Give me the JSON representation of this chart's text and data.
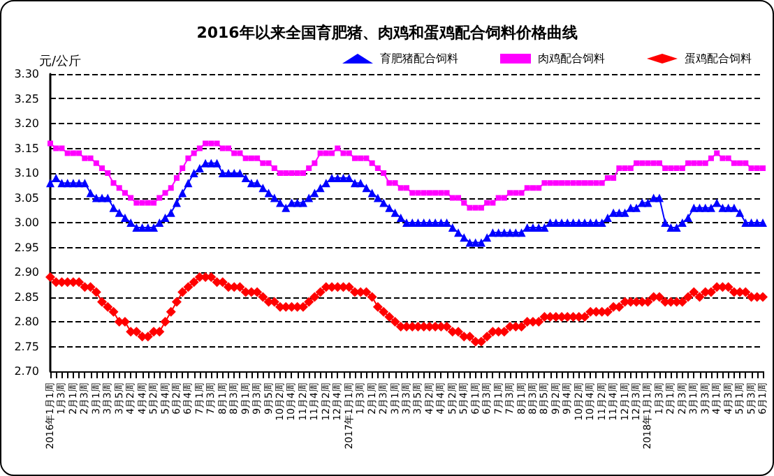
{
  "chart_data": {
    "type": "line",
    "title": "2016年以来全国育肥猪、肉鸡和蛋鸡配合饲料价格曲线",
    "ylabel": "元/公斤",
    "categories": [
      "2016年1月1周",
      null,
      "1月3周",
      null,
      "2月1周",
      null,
      "2月3周",
      null,
      "3月1周",
      null,
      "3月3周",
      null,
      "3月5周",
      null,
      "4月2周",
      null,
      "4月4周",
      null,
      "5月2周",
      null,
      "5月4周",
      null,
      "6月2周",
      null,
      "6月4周",
      null,
      "7月1周",
      null,
      "7月3周",
      null,
      "8月1周",
      null,
      "8月3周",
      null,
      "9月1周",
      null,
      "9月3周",
      null,
      "9月5周",
      null,
      "10月2周",
      null,
      "10月4周",
      null,
      "11月2周",
      null,
      "11月4周",
      null,
      "12月2周",
      null,
      "12月4周",
      null,
      "2017年1月1周",
      null,
      "1月3周",
      null,
      "2月1周",
      null,
      "2月3周",
      null,
      "3月1周",
      null,
      "3月3周",
      null,
      "3月5周",
      null,
      "4月2周",
      null,
      "4月4周",
      null,
      "5月2周",
      null,
      "5月4周",
      null,
      "6月1周",
      null,
      "6月3周",
      null,
      "7月1周",
      null,
      "7月3周",
      null,
      "8月1周",
      null,
      "8月3周",
      null,
      "8月5周",
      null,
      "9月2周",
      null,
      "9月4周",
      null,
      "10月2周",
      null,
      "10月4周",
      null,
      "11月2周",
      null,
      "11月4周",
      null,
      "12月1周",
      null,
      "12月3周",
      null,
      "2018年1月1周",
      null,
      "1月3周",
      null,
      "2月1周",
      null,
      "2月3周",
      null,
      "3月1周",
      null,
      "3月3周",
      null,
      "4月1周",
      null,
      "4月3周",
      null,
      "5月1周",
      null,
      "5月3周",
      null,
      "6月1周"
    ],
    "series": [
      {
        "name": "育肥猪配合饲料",
        "color": "#0000ff",
        "marker": "triangle",
        "values": [
          3.08,
          3.09,
          3.08,
          3.08,
          3.08,
          3.08,
          3.08,
          3.06,
          3.05,
          3.05,
          3.05,
          3.03,
          3.02,
          3.01,
          3.0,
          2.99,
          2.99,
          2.99,
          2.99,
          3.0,
          3.01,
          3.02,
          3.04,
          3.06,
          3.08,
          3.1,
          3.11,
          3.12,
          3.12,
          3.12,
          3.1,
          3.1,
          3.1,
          3.1,
          3.09,
          3.08,
          3.08,
          3.07,
          3.06,
          3.05,
          3.04,
          3.03,
          3.04,
          3.04,
          3.04,
          3.05,
          3.06,
          3.07,
          3.08,
          3.09,
          3.09,
          3.09,
          3.09,
          3.08,
          3.08,
          3.07,
          3.06,
          3.05,
          3.04,
          3.03,
          3.02,
          3.01,
          3.0,
          3.0,
          3.0,
          3.0,
          3.0,
          3.0,
          3.0,
          3.0,
          2.99,
          2.98,
          2.97,
          2.96,
          2.96,
          2.96,
          2.97,
          2.98,
          2.98,
          2.98,
          2.98,
          2.98,
          2.98,
          2.99,
          2.99,
          2.99,
          2.99,
          3.0,
          3.0,
          3.0,
          3.0,
          3.0,
          3.0,
          3.0,
          3.0,
          3.0,
          3.0,
          3.01,
          3.02,
          3.02,
          3.02,
          3.03,
          3.03,
          3.04,
          3.04,
          3.05,
          3.05,
          3.0,
          2.99,
          2.99,
          3.0,
          3.01,
          3.03,
          3.03,
          3.03,
          3.03,
          3.04,
          3.03,
          3.03,
          3.03,
          3.02,
          3.0,
          3.0,
          3.0,
          3.0
        ]
      },
      {
        "name": "肉鸡配合饲料",
        "color": "#ff00ff",
        "marker": "square",
        "values": [
          3.16,
          3.15,
          3.15,
          3.14,
          3.14,
          3.14,
          3.13,
          3.13,
          3.12,
          3.11,
          3.1,
          3.08,
          3.07,
          3.06,
          3.05,
          3.04,
          3.04,
          3.04,
          3.04,
          3.05,
          3.06,
          3.07,
          3.09,
          3.11,
          3.13,
          3.14,
          3.15,
          3.16,
          3.16,
          3.16,
          3.15,
          3.15,
          3.14,
          3.14,
          3.13,
          3.13,
          3.13,
          3.12,
          3.12,
          3.11,
          3.1,
          3.1,
          3.1,
          3.1,
          3.1,
          3.11,
          3.12,
          3.14,
          3.14,
          3.14,
          3.15,
          3.14,
          3.14,
          3.13,
          3.13,
          3.13,
          3.12,
          3.11,
          3.1,
          3.08,
          3.08,
          3.07,
          3.07,
          3.06,
          3.06,
          3.06,
          3.06,
          3.06,
          3.06,
          3.06,
          3.05,
          3.05,
          3.04,
          3.03,
          3.03,
          3.03,
          3.04,
          3.04,
          3.05,
          3.05,
          3.06,
          3.06,
          3.06,
          3.07,
          3.07,
          3.07,
          3.08,
          3.08,
          3.08,
          3.08,
          3.08,
          3.08,
          3.08,
          3.08,
          3.08,
          3.08,
          3.08,
          3.09,
          3.09,
          3.11,
          3.11,
          3.11,
          3.12,
          3.12,
          3.12,
          3.12,
          3.12,
          3.11,
          3.11,
          3.11,
          3.11,
          3.12,
          3.12,
          3.12,
          3.12,
          3.13,
          3.14,
          3.13,
          3.13,
          3.12,
          3.12,
          3.12,
          3.11,
          3.11,
          3.11
        ]
      },
      {
        "name": "蛋鸡配合饲料",
        "color": "#ff0000",
        "marker": "diamond",
        "values": [
          2.89,
          2.88,
          2.88,
          2.88,
          2.88,
          2.88,
          2.87,
          2.87,
          2.86,
          2.84,
          2.83,
          2.82,
          2.8,
          2.8,
          2.78,
          2.78,
          2.77,
          2.77,
          2.78,
          2.78,
          2.8,
          2.82,
          2.84,
          2.86,
          2.87,
          2.88,
          2.89,
          2.89,
          2.89,
          2.88,
          2.88,
          2.87,
          2.87,
          2.87,
          2.86,
          2.86,
          2.86,
          2.85,
          2.84,
          2.84,
          2.83,
          2.83,
          2.83,
          2.83,
          2.83,
          2.84,
          2.85,
          2.86,
          2.87,
          2.87,
          2.87,
          2.87,
          2.87,
          2.86,
          2.86,
          2.86,
          2.85,
          2.83,
          2.82,
          2.81,
          2.8,
          2.79,
          2.79,
          2.79,
          2.79,
          2.79,
          2.79,
          2.79,
          2.79,
          2.79,
          2.78,
          2.78,
          2.77,
          2.77,
          2.76,
          2.76,
          2.77,
          2.78,
          2.78,
          2.78,
          2.79,
          2.79,
          2.79,
          2.8,
          2.8,
          2.8,
          2.81,
          2.81,
          2.81,
          2.81,
          2.81,
          2.81,
          2.81,
          2.81,
          2.82,
          2.82,
          2.82,
          2.82,
          2.83,
          2.83,
          2.84,
          2.84,
          2.84,
          2.84,
          2.84,
          2.85,
          2.85,
          2.84,
          2.84,
          2.84,
          2.84,
          2.85,
          2.86,
          2.85,
          2.86,
          2.86,
          2.87,
          2.87,
          2.87,
          2.86,
          2.86,
          2.86,
          2.85,
          2.85,
          2.85
        ]
      }
    ],
    "ylim": [
      2.7,
      3.3
    ],
    "yticks": [
      {
        "value": 2.7,
        "label": "2.70"
      },
      {
        "value": 2.75,
        "label": "2.75"
      },
      {
        "value": 2.8,
        "label": "2.80"
      },
      {
        "value": 2.85,
        "label": "2.85"
      },
      {
        "value": 2.9,
        "label": "2.90"
      },
      {
        "value": 2.95,
        "label": "2.95"
      },
      {
        "value": 3.0,
        "label": "3.00"
      },
      {
        "value": 3.05,
        "label": "3.05"
      },
      {
        "value": 3.1,
        "label": "3.10"
      },
      {
        "value": 3.15,
        "label": "3.15"
      },
      {
        "value": 3.2,
        "label": "3.20"
      },
      {
        "value": 3.25,
        "label": "3.25"
      },
      {
        "value": 3.3,
        "label": "3.30"
      }
    ],
    "grid": "y",
    "legend": "top right",
    "line_style": "solid"
  }
}
